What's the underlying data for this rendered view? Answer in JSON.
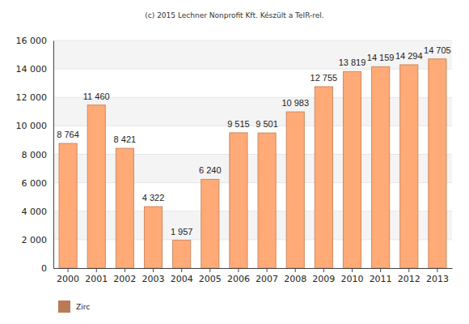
{
  "chart_data": {
    "type": "bar",
    "title": "(c) 2015 Lechner Nonprofit Kft. Készült a TeIR-rel.",
    "categories": [
      "2000",
      "2001",
      "2002",
      "2003",
      "2004",
      "2005",
      "2006",
      "2007",
      "2008",
      "2009",
      "2010",
      "2011",
      "2012",
      "2013"
    ],
    "series": [
      {
        "name": "Zirc",
        "color": "#ffaa77",
        "values": [
          8764,
          11460,
          8421,
          4322,
          1957,
          6240,
          9515,
          9501,
          10983,
          12755,
          13819,
          14159,
          14294,
          14705
        ],
        "value_labels": [
          "8 764",
          "11 460",
          "8 421",
          "4 322",
          "1 957",
          "6 240",
          "9 515",
          "9 501",
          "10 983",
          "12 755",
          "13 819",
          "14 159",
          "14 294",
          "14 705"
        ]
      }
    ],
    "ylim": [
      0,
      16000
    ],
    "yticks": [
      0,
      {
        "value": 2000,
        "label": "2 000"
      },
      {
        "value": 4000,
        "label": "4 000"
      },
      {
        "value": 6000,
        "label": "6 000"
      },
      {
        "value": 8000,
        "label": "8 000"
      },
      {
        "value": 10000,
        "label": "10 000"
      },
      {
        "value": 12000,
        "label": "12 000"
      },
      {
        "value": 14000,
        "label": "14 000"
      },
      {
        "value": 16000,
        "label": "16 000"
      }
    ],
    "grid": true,
    "data_labels": true,
    "legend": "bottom"
  }
}
